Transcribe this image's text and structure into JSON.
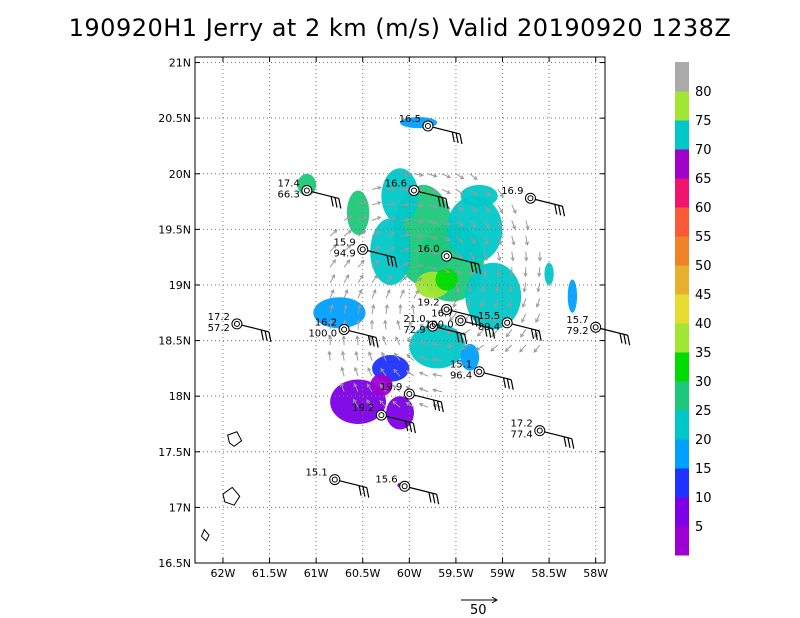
{
  "title": "190920H1 Jerry at 2 km (m/s) Valid 20190920 1238Z",
  "chart_data": {
    "type": "heatmap",
    "title": "190920H1 Jerry at 2 km (m/s) Valid 20190920 1238Z",
    "xlabel": "",
    "ylabel": "",
    "xlim": [
      -62.3,
      -57.9
    ],
    "ylim": [
      16.5,
      21.05
    ],
    "grid": true,
    "x_ticks": [
      {
        "v": -62.0,
        "label": "62W"
      },
      {
        "v": -61.5,
        "label": "61.5W"
      },
      {
        "v": -61.0,
        "label": "61W"
      },
      {
        "v": -60.5,
        "label": "60.5W"
      },
      {
        "v": -60.0,
        "label": "60W"
      },
      {
        "v": -59.5,
        "label": "59.5W"
      },
      {
        "v": -59.0,
        "label": "59W"
      },
      {
        "v": -58.5,
        "label": "58.5W"
      },
      {
        "v": -58.0,
        "label": "58W"
      }
    ],
    "y_ticks": [
      {
        "v": 16.5,
        "label": "16.5N"
      },
      {
        "v": 17.0,
        "label": "17N"
      },
      {
        "v": 17.5,
        "label": "17.5N"
      },
      {
        "v": 18.0,
        "label": "18N"
      },
      {
        "v": 18.5,
        "label": "18.5N"
      },
      {
        "v": 19.0,
        "label": "19N"
      },
      {
        "v": 19.5,
        "label": "19.5N"
      },
      {
        "v": 20.0,
        "label": "20N"
      },
      {
        "v": 20.5,
        "label": "20.5N"
      },
      {
        "v": 21.0,
        "label": "21N"
      }
    ],
    "colorbar": {
      "labels": [
        "5",
        "10",
        "15",
        "20",
        "25",
        "30",
        "35",
        "40",
        "45",
        "50",
        "55",
        "60",
        "65",
        "70",
        "75",
        "80"
      ],
      "colors": [
        "#9e00d2",
        "#7d00e6",
        "#1e32ff",
        "#00a0ff",
        "#00c8c8",
        "#1ec87a",
        "#00dc00",
        "#a0e632",
        "#e6dc32",
        "#e6af2d",
        "#f08228",
        "#fa5a37",
        "#f0146e",
        "#a000c8",
        "#00c8c8",
        "#a0e632",
        "#aaaaaa"
      ]
    },
    "regions": [
      {
        "lon": -59.85,
        "lat": 19.45,
        "rx": 0.32,
        "ry": 0.45,
        "color": "#1ec87a"
      },
      {
        "lon": -59.55,
        "lat": 19.2,
        "rx": 0.35,
        "ry": 0.35,
        "color": "#1ec87a"
      },
      {
        "lon": -60.1,
        "lat": 19.8,
        "rx": 0.2,
        "ry": 0.25,
        "color": "#00c8c8"
      },
      {
        "lon": -60.2,
        "lat": 19.3,
        "rx": 0.22,
        "ry": 0.3,
        "color": "#00c8c8"
      },
      {
        "lon": -59.3,
        "lat": 19.5,
        "rx": 0.3,
        "ry": 0.3,
        "color": "#00c8c8"
      },
      {
        "lon": -59.1,
        "lat": 18.9,
        "rx": 0.3,
        "ry": 0.3,
        "color": "#00c8c8"
      },
      {
        "lon": -59.7,
        "lat": 18.45,
        "rx": 0.3,
        "ry": 0.2,
        "color": "#00c8c8"
      },
      {
        "lon": -60.55,
        "lat": 19.65,
        "rx": 0.12,
        "ry": 0.2,
        "color": "#1ec87a"
      },
      {
        "lon": -61.1,
        "lat": 19.9,
        "rx": 0.1,
        "ry": 0.1,
        "color": "#1ec87a"
      },
      {
        "lon": -59.25,
        "lat": 19.8,
        "rx": 0.2,
        "ry": 0.1,
        "color": "#00c8c8"
      },
      {
        "lon": -59.75,
        "lat": 19.0,
        "rx": 0.18,
        "ry": 0.12,
        "color": "#a0e632"
      },
      {
        "lon": -59.6,
        "lat": 19.05,
        "rx": 0.12,
        "ry": 0.1,
        "color": "#00dc00"
      },
      {
        "lon": -59.9,
        "lat": 20.46,
        "rx": 0.2,
        "ry": 0.05,
        "color": "#00a0ff"
      },
      {
        "lon": -60.75,
        "lat": 18.75,
        "rx": 0.28,
        "ry": 0.14,
        "color": "#00a0ff"
      },
      {
        "lon": -59.35,
        "lat": 18.35,
        "rx": 0.1,
        "ry": 0.12,
        "color": "#00a0ff"
      },
      {
        "lon": -58.25,
        "lat": 18.9,
        "rx": 0.05,
        "ry": 0.15,
        "color": "#00a0ff"
      },
      {
        "lon": -58.5,
        "lat": 19.1,
        "rx": 0.05,
        "ry": 0.1,
        "color": "#00c8c8"
      },
      {
        "lon": -60.2,
        "lat": 18.25,
        "rx": 0.2,
        "ry": 0.12,
        "color": "#1e32ff"
      },
      {
        "lon": -60.55,
        "lat": 17.95,
        "rx": 0.3,
        "ry": 0.2,
        "color": "#7d00e6"
      },
      {
        "lon": -60.1,
        "lat": 17.85,
        "rx": 0.15,
        "ry": 0.15,
        "color": "#7d00e6"
      },
      {
        "lon": -60.3,
        "lat": 18.1,
        "rx": 0.12,
        "ry": 0.1,
        "color": "#9e00d2"
      },
      {
        "lon": -60.1,
        "lat": 17.2,
        "rx": 0.03,
        "ry": 0.02,
        "color": "#9e00d2"
      }
    ],
    "stations": [
      {
        "lon": -59.8,
        "lat": 20.43,
        "labels": [
          "16.5"
        ]
      },
      {
        "lon": -61.1,
        "lat": 19.85,
        "labels": [
          "17.4",
          "66.3"
        ]
      },
      {
        "lon": -59.95,
        "lat": 19.85,
        "labels": [
          "16.6"
        ]
      },
      {
        "lon": -58.7,
        "lat": 19.78,
        "labels": [
          "16.9"
        ]
      },
      {
        "lon": -60.5,
        "lat": 19.32,
        "labels": [
          "15.9",
          "94.9"
        ]
      },
      {
        "lon": -59.6,
        "lat": 19.26,
        "labels": [
          "16.0"
        ]
      },
      {
        "lon": -61.85,
        "lat": 18.65,
        "labels": [
          "17.2",
          "57.2"
        ]
      },
      {
        "lon": -60.7,
        "lat": 18.6,
        "labels": [
          "16.2",
          "100.0"
        ]
      },
      {
        "lon": -59.6,
        "lat": 18.78,
        "labels": [
          "19.2"
        ]
      },
      {
        "lon": -59.75,
        "lat": 18.63,
        "labels": [
          "21.0",
          "72.9"
        ]
      },
      {
        "lon": -59.45,
        "lat": 18.68,
        "labels": [
          "16.7",
          "100.0"
        ]
      },
      {
        "lon": -58.95,
        "lat": 18.66,
        "labels": [
          "15.5",
          "89.4"
        ]
      },
      {
        "lon": -58.0,
        "lat": 18.62,
        "labels": [
          "15.7",
          "79.2"
        ]
      },
      {
        "lon": -59.25,
        "lat": 18.22,
        "labels": [
          "15.1",
          "96.4"
        ]
      },
      {
        "lon": -60.0,
        "lat": 18.02,
        "labels": [
          "19.9"
        ]
      },
      {
        "lon": -60.3,
        "lat": 17.83,
        "labels": [
          "19.2"
        ]
      },
      {
        "lon": -58.6,
        "lat": 17.69,
        "labels": [
          "17.2",
          "77.4"
        ]
      },
      {
        "lon": -60.8,
        "lat": 17.25,
        "labels": [
          "15.1"
        ]
      },
      {
        "lon": -60.05,
        "lat": 17.19,
        "labels": [
          "15.6"
        ]
      }
    ],
    "reference_vector": {
      "speed": 50,
      "label": "50"
    }
  }
}
